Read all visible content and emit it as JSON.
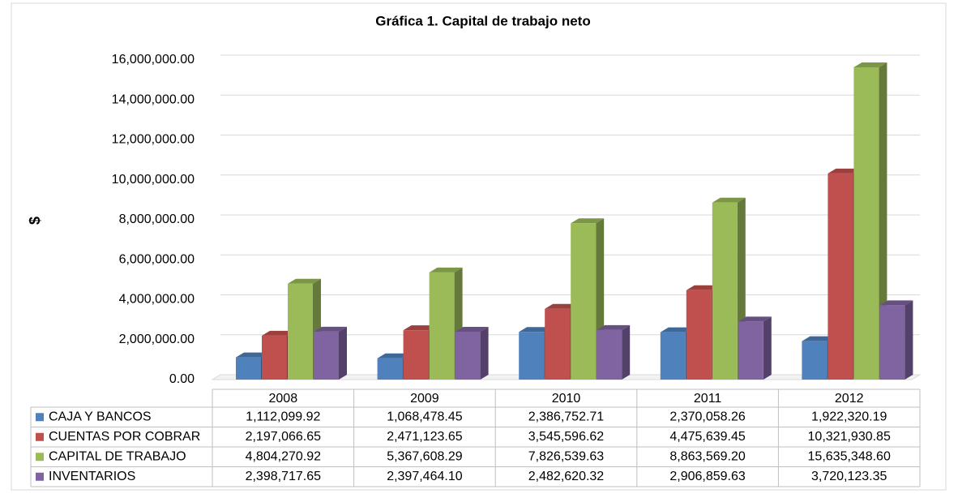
{
  "chart_data": {
    "type": "bar",
    "title": "Gráfica 1. Capital de trabajo neto",
    "y_label": "$",
    "categories": [
      "2008",
      "2009",
      "2010",
      "2011",
      "2012"
    ],
    "series": [
      {
        "name": "CAJA Y BANCOS",
        "color": "#4f81bd",
        "values": [
          1112099.92,
          1068478.45,
          2386752.71,
          2370058.26,
          1922320.19
        ],
        "value_labels": [
          "1,112,099.92",
          "1,068,478.45",
          "2,386,752.71",
          "2,370,058.26",
          "1,922,320.19"
        ]
      },
      {
        "name": "CUENTAS POR COBRAR",
        "color": "#c0504d",
        "values": [
          2197066.65,
          2471123.65,
          3545596.62,
          4475639.45,
          10321930.85
        ],
        "value_labels": [
          "2,197,066.65",
          "2,471,123.65",
          "3,545,596.62",
          "4,475,639.45",
          "10,321,930.85"
        ]
      },
      {
        "name": "CAPITAL DE TRABAJO",
        "color": "#9bbb59",
        "values": [
          4804270.92,
          5367608.29,
          7826539.63,
          8863569.2,
          15635348.6
        ],
        "value_labels": [
          "4,804,270.92",
          "5,367,608.29",
          "7,826,539.63",
          "8,863,569.20",
          "15,635,348.60"
        ]
      },
      {
        "name": "INVENTARIOS",
        "color": "#8064a2",
        "values": [
          2398717.65,
          2397464.1,
          2482620.32,
          2906859.63,
          3720123.35
        ],
        "value_labels": [
          "2,398,717.65",
          "2,397,464.10",
          "2,482,620.32",
          "2,906,859.63",
          "3,720,123.35"
        ]
      }
    ],
    "ylim": [
      0,
      16000000
    ],
    "yticks": [
      {
        "value": 0,
        "label": "0.00"
      },
      {
        "value": 2000000,
        "label": "2,000,000.00"
      },
      {
        "value": 4000000,
        "label": "4,000,000.00"
      },
      {
        "value": 6000000,
        "label": "6,000,000.00"
      },
      {
        "value": 8000000,
        "label": "8,000,000.00"
      },
      {
        "value": 10000000,
        "label": "10,000,000.00"
      },
      {
        "value": 12000000,
        "label": "12,000,000.00"
      },
      {
        "value": 14000000,
        "label": "14,000,000.00"
      },
      {
        "value": 16000000,
        "label": "16,000,000.00"
      }
    ],
    "grid": true
  }
}
